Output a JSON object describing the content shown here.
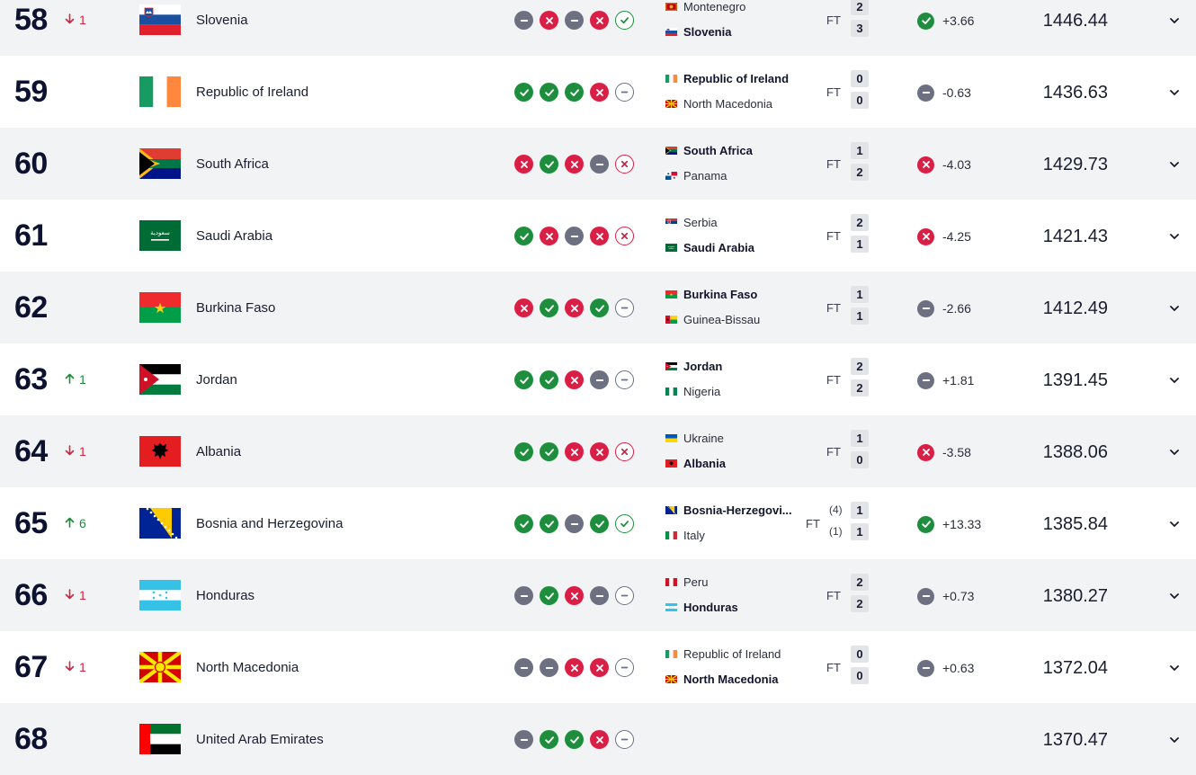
{
  "colors": {
    "win": "#1e8e3e",
    "loss": "#d91f45",
    "draw": "#6d7080",
    "alt_row_bg": "#f2f3f5",
    "move_up": "#1d8a3a",
    "move_down": "#d4213d"
  },
  "icons": {
    "win": "check-icon",
    "loss": "cross-icon",
    "draw": "minus-icon",
    "expand": "chevron-down-icon",
    "move_up": "arrow-up-icon",
    "move_down": "arrow-down-icon"
  },
  "rows": [
    {
      "rank": "58",
      "move_dir": "down",
      "move_val": "1",
      "flag": "SVN",
      "team": "Slovenia",
      "form": [
        "d",
        "l",
        "d",
        "l",
        "wo"
      ],
      "match": {
        "home": "Montenegro",
        "home_flag": "MNE",
        "home_score": "2",
        "away": "Slovenia",
        "away_flag": "SVN",
        "away_score": "3",
        "bold": "away",
        "status": "FT",
        "home_pen": "",
        "away_pen": ""
      },
      "change_result": "w",
      "change": "+3.66",
      "points": "1446.44"
    },
    {
      "rank": "59",
      "move_dir": "",
      "move_val": "",
      "flag": "IRL",
      "team": "Republic of Ireland",
      "form": [
        "w",
        "w",
        "w",
        "l",
        "do"
      ],
      "match": {
        "home": "Republic of Ireland",
        "home_flag": "IRL",
        "home_score": "0",
        "away": "North Macedonia",
        "away_flag": "MKD",
        "away_score": "0",
        "bold": "home",
        "status": "FT",
        "home_pen": "",
        "away_pen": ""
      },
      "change_result": "d",
      "change": "-0.63",
      "points": "1436.63"
    },
    {
      "rank": "60",
      "move_dir": "",
      "move_val": "",
      "flag": "RSA",
      "team": "South Africa",
      "form": [
        "l",
        "w",
        "l",
        "d",
        "lo"
      ],
      "match": {
        "home": "South Africa",
        "home_flag": "RSA",
        "home_score": "1",
        "away": "Panama",
        "away_flag": "PAN",
        "away_score": "2",
        "bold": "home",
        "status": "FT",
        "home_pen": "",
        "away_pen": ""
      },
      "change_result": "l",
      "change": "-4.03",
      "points": "1429.73"
    },
    {
      "rank": "61",
      "move_dir": "",
      "move_val": "",
      "flag": "KSA",
      "team": "Saudi Arabia",
      "form": [
        "w",
        "l",
        "d",
        "l",
        "lo"
      ],
      "match": {
        "home": "Serbia",
        "home_flag": "SRB",
        "home_score": "2",
        "away": "Saudi Arabia",
        "away_flag": "KSA",
        "away_score": "1",
        "bold": "away",
        "status": "FT",
        "home_pen": "",
        "away_pen": ""
      },
      "change_result": "l",
      "change": "-4.25",
      "points": "1421.43"
    },
    {
      "rank": "62",
      "move_dir": "",
      "move_val": "",
      "flag": "BFA",
      "team": "Burkina Faso",
      "form": [
        "l",
        "w",
        "l",
        "w",
        "do"
      ],
      "match": {
        "home": "Burkina Faso",
        "home_flag": "BFA",
        "home_score": "1",
        "away": "Guinea-Bissau",
        "away_flag": "GNB",
        "away_score": "1",
        "bold": "home",
        "status": "FT",
        "home_pen": "",
        "away_pen": ""
      },
      "change_result": "d",
      "change": "-2.66",
      "points": "1412.49"
    },
    {
      "rank": "63",
      "move_dir": "up",
      "move_val": "1",
      "flag": "JOR",
      "team": "Jordan",
      "form": [
        "w",
        "w",
        "l",
        "d",
        "do"
      ],
      "match": {
        "home": "Jordan",
        "home_flag": "JOR",
        "home_score": "2",
        "away": "Nigeria",
        "away_flag": "NGA",
        "away_score": "2",
        "bold": "home",
        "status": "FT",
        "home_pen": "",
        "away_pen": ""
      },
      "change_result": "d",
      "change": "+1.81",
      "points": "1391.45"
    },
    {
      "rank": "64",
      "move_dir": "down",
      "move_val": "1",
      "flag": "ALB",
      "team": "Albania",
      "form": [
        "w",
        "w",
        "l",
        "l",
        "lo"
      ],
      "match": {
        "home": "Ukraine",
        "home_flag": "UKR",
        "home_score": "1",
        "away": "Albania",
        "away_flag": "ALB",
        "away_score": "0",
        "bold": "away",
        "status": "FT",
        "home_pen": "",
        "away_pen": ""
      },
      "change_result": "l",
      "change": "-3.58",
      "points": "1388.06"
    },
    {
      "rank": "65",
      "move_dir": "up",
      "move_val": "6",
      "flag": "BIH",
      "team": "Bosnia and Herzegovina",
      "form": [
        "w",
        "w",
        "d",
        "w",
        "wo"
      ],
      "match": {
        "home": "Bosnia-Herzegovi...",
        "home_flag": "BIH",
        "home_score": "1",
        "away": "Italy",
        "away_flag": "ITA",
        "away_score": "1",
        "bold": "home",
        "status": "FT",
        "home_pen": "(4)",
        "away_pen": "(1)"
      },
      "change_result": "w",
      "change": "+13.33",
      "points": "1385.84"
    },
    {
      "rank": "66",
      "move_dir": "down",
      "move_val": "1",
      "flag": "HON",
      "team": "Honduras",
      "form": [
        "d",
        "w",
        "l",
        "d",
        "do"
      ],
      "match": {
        "home": "Peru",
        "home_flag": "PER",
        "home_score": "2",
        "away": "Honduras",
        "away_flag": "HON",
        "away_score": "2",
        "bold": "away",
        "status": "FT",
        "home_pen": "",
        "away_pen": ""
      },
      "change_result": "d",
      "change": "+0.73",
      "points": "1380.27"
    },
    {
      "rank": "67",
      "move_dir": "down",
      "move_val": "1",
      "flag": "MKD",
      "team": "North Macedonia",
      "form": [
        "d",
        "d",
        "l",
        "l",
        "do"
      ],
      "match": {
        "home": "Republic of Ireland",
        "home_flag": "IRL",
        "home_score": "0",
        "away": "North Macedonia",
        "away_flag": "MKD",
        "away_score": "0",
        "bold": "away",
        "status": "FT",
        "home_pen": "",
        "away_pen": ""
      },
      "change_result": "d",
      "change": "+0.63",
      "points": "1372.04"
    },
    {
      "rank": "68",
      "move_dir": "",
      "move_val": "",
      "flag": "UAE",
      "team": "United Arab Emirates",
      "form": [
        "d",
        "w",
        "w",
        "l",
        "do"
      ],
      "match": null,
      "change_result": "",
      "change": "",
      "points": "1370.47"
    }
  ]
}
